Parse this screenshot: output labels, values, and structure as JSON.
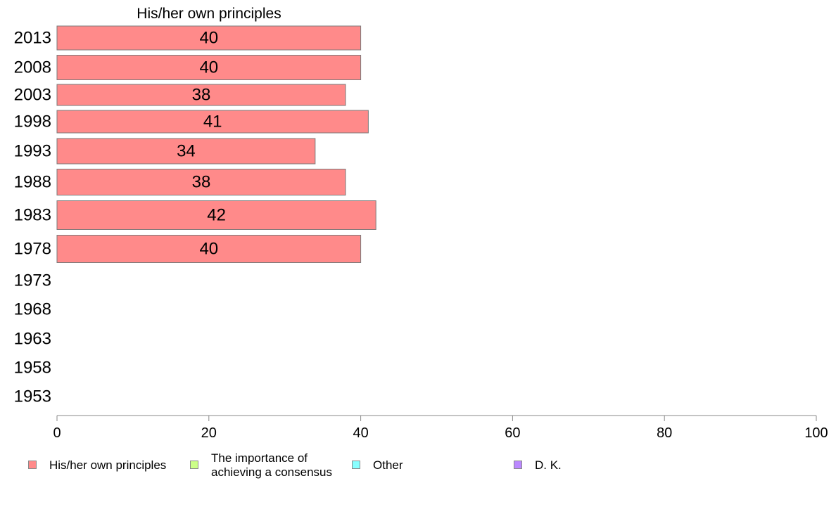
{
  "chart_data": {
    "type": "bar",
    "orientation": "horizontal",
    "title": "His/her own principles",
    "categories": [
      "2013",
      "2008",
      "2003",
      "1998",
      "1993",
      "1988",
      "1983",
      "1978",
      "1973",
      "1968",
      "1963",
      "1958",
      "1953"
    ],
    "series": [
      {
        "name": "His/her own principles",
        "color": "#ff8a8a",
        "values": [
          40,
          40,
          38,
          41,
          34,
          38,
          42,
          40,
          null,
          null,
          null,
          null,
          null
        ],
        "labels": [
          "40",
          "40",
          "38",
          "41",
          "34",
          "38",
          "42",
          "40",
          "",
          "",
          "",
          "",
          ""
        ]
      }
    ],
    "xlim": [
      0,
      100
    ],
    "xticks": [
      "0",
      "20",
      "40",
      "60",
      "80",
      "100"
    ],
    "grid": false,
    "legend_position": "bottom"
  },
  "legend": [
    {
      "label": "His/her own principles",
      "color": "#ff8a8a"
    },
    {
      "label": "The importance of\nachieving a consensus",
      "color": "#ccff88"
    },
    {
      "label": "Other",
      "color": "#88ffff"
    },
    {
      "label": "D. K.",
      "color": "#bb88ff"
    }
  ]
}
